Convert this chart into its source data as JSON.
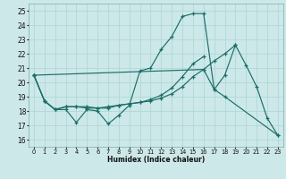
{
  "bg_color": "#cde8e8",
  "grid_color": "#b0d8d8",
  "line_color": "#1a6e6a",
  "xlabel": "Humidex (Indice chaleur)",
  "xlim": [
    -0.5,
    23.5
  ],
  "ylim": [
    15.5,
    25.5
  ],
  "yticks": [
    16,
    17,
    18,
    19,
    20,
    21,
    22,
    23,
    24,
    25
  ],
  "xticks": [
    0,
    1,
    2,
    3,
    4,
    5,
    6,
    7,
    8,
    9,
    10,
    11,
    12,
    13,
    14,
    15,
    16,
    17,
    18,
    19,
    20,
    21,
    22,
    23
  ],
  "series": [
    {
      "x": [
        0,
        1,
        2,
        3,
        4,
        5,
        6,
        7,
        8,
        9,
        10,
        11,
        12,
        13,
        14,
        15,
        16,
        17,
        18,
        19,
        20,
        21,
        22,
        23
      ],
      "y": [
        20.5,
        18.7,
        18.1,
        18.1,
        17.2,
        18.1,
        18.0,
        17.1,
        17.7,
        18.4,
        20.8,
        21.0,
        22.3,
        23.2,
        24.6,
        24.8,
        24.8,
        19.5,
        20.5,
        22.6,
        21.2,
        19.7,
        17.5,
        16.3
      ]
    },
    {
      "x": [
        0,
        1,
        2,
        3,
        4,
        5,
        6,
        7,
        8,
        9,
        10,
        11,
        12,
        13,
        14,
        15,
        16,
        17,
        18,
        19
      ],
      "y": [
        20.5,
        18.7,
        18.1,
        18.3,
        18.3,
        18.3,
        18.2,
        18.3,
        18.4,
        18.5,
        18.6,
        18.7,
        18.9,
        19.2,
        19.7,
        20.4,
        20.9,
        21.5,
        22.0,
        22.6
      ]
    },
    {
      "x": [
        0,
        1,
        2,
        3,
        4,
        5,
        6,
        7,
        8,
        9,
        10,
        11,
        12,
        13,
        14,
        15,
        16
      ],
      "y": [
        20.5,
        18.7,
        18.1,
        18.3,
        18.3,
        18.2,
        18.2,
        18.2,
        18.4,
        18.5,
        18.6,
        18.8,
        19.1,
        19.6,
        20.4,
        21.3,
        21.8
      ]
    },
    {
      "x": [
        0,
        16,
        17,
        18,
        23
      ],
      "y": [
        20.5,
        20.9,
        19.5,
        19.0,
        16.3
      ]
    }
  ]
}
